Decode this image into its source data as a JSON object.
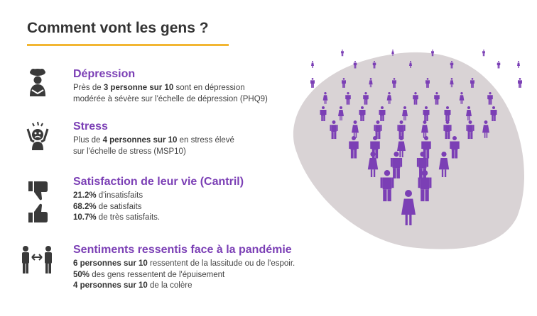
{
  "title": "Comment vont les gens ?",
  "colors": {
    "accent_purple": "#7b3fb5",
    "underline_yellow": "#f2b632",
    "blob_gray": "#d9d3d5",
    "icon_dark": "#3a3a3a"
  },
  "sections": [
    {
      "icon": "depressed-person-icon",
      "heading": "Dépression",
      "lines": [
        {
          "pre": "Près de ",
          "bold": "3 personne sur 10",
          "post": " sont en dépression"
        },
        {
          "pre": "modérée à sévère sur l'échelle de dépression (PHQ9)",
          "bold": "",
          "post": ""
        }
      ]
    },
    {
      "icon": "stressed-person-icon",
      "heading": "Stress",
      "lines": [
        {
          "pre": "Plus de ",
          "bold": "4 personnes sur 10",
          "post": " en stress élevé"
        },
        {
          "pre": "sur l'échelle de stress (MSP10)",
          "bold": "",
          "post": ""
        }
      ]
    },
    {
      "icon": "thumbs-icon",
      "heading": "Satisfaction de leur vie (Cantril)",
      "lines": [
        {
          "pre": "",
          "bold": "21.2%",
          "post": " d'insatisfaits"
        },
        {
          "pre": "",
          "bold": "68.2%",
          "post": " de satisfaits"
        },
        {
          "pre": "",
          "bold": "10.7%",
          "post": " de très satisfaits."
        }
      ]
    },
    {
      "icon": "people-exchange-icon",
      "heading": "Sentiments ressentis face à la pandémie",
      "lines": [
        {
          "pre": "",
          "bold": "6 personnes sur 10",
          "post": " ressentent de la lassitude ou de l'espoir."
        },
        {
          "pre": "",
          "bold": "50%",
          "post": " des gens ressentent de l'épuisement"
        },
        {
          "pre": "",
          "bold": "4 personnes sur 10",
          "post": " de la colère"
        }
      ]
    }
  ],
  "crowd_icon": "crowd-of-people-icon"
}
